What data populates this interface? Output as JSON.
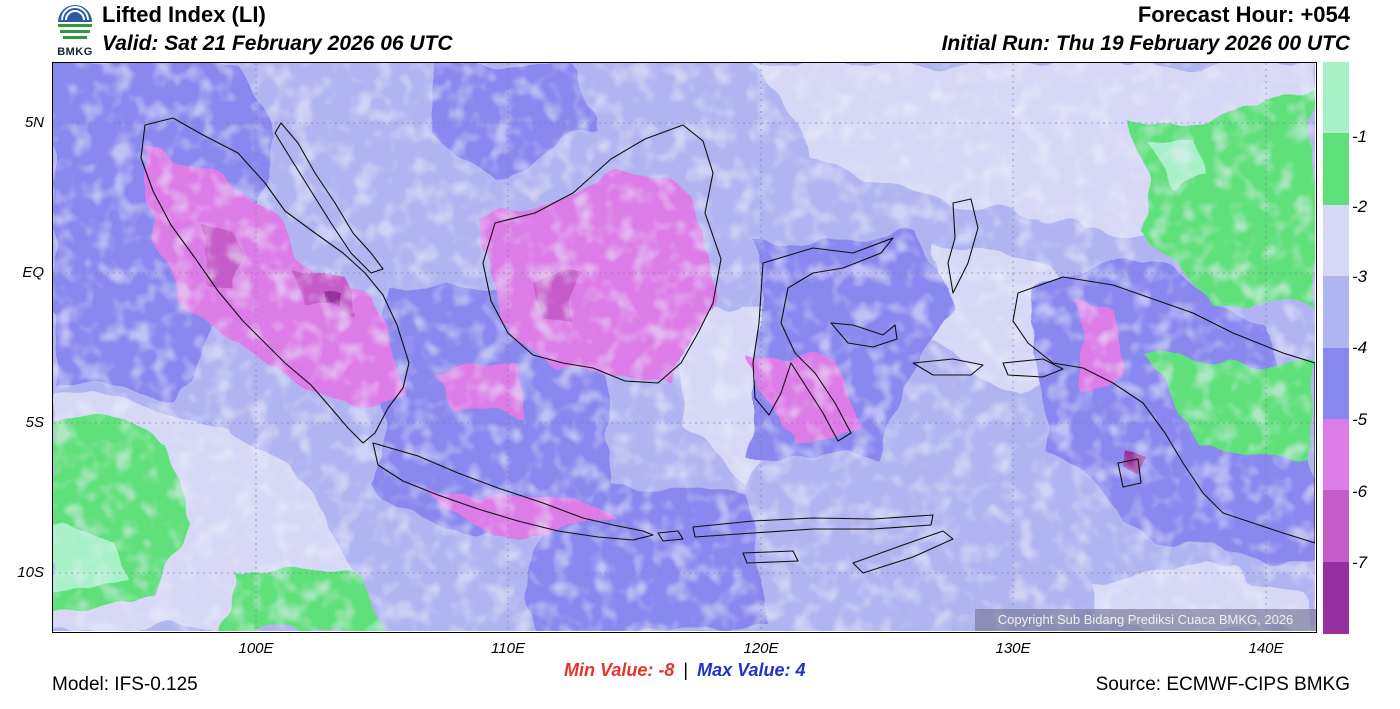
{
  "header": {
    "title": "Lifted Index (LI)",
    "valid": "Valid: Sat 21 February 2026 06 UTC",
    "forecast_hour": "Forecast Hour: +054",
    "initial_run": "Initial Run: Thu 19 February 2026 00 UTC",
    "logo_text": "BMKG"
  },
  "axes": {
    "lat_labels": [
      {
        "label": "5N",
        "lat": 5
      },
      {
        "label": "EQ",
        "lat": 0
      },
      {
        "label": "5S",
        "lat": -5
      },
      {
        "label": "10S",
        "lat": -10
      }
    ],
    "lon_labels": [
      {
        "label": "100E",
        "lon": 100
      },
      {
        "label": "110E",
        "lon": 110
      },
      {
        "label": "120E",
        "lon": 120
      },
      {
        "label": "130E",
        "lon": 130
      },
      {
        "label": "140E",
        "lon": 140
      }
    ],
    "lon_range": [
      92,
      142
    ],
    "lat_range": [
      -12,
      7
    ]
  },
  "colorbar": {
    "labels": [
      "-1",
      "-2",
      "-3",
      "-4",
      "-5",
      "-6",
      "-7"
    ],
    "colors": [
      "#a8f0c8",
      "#5ee07a",
      "#d6d8f6",
      "#b0b4f0",
      "#8888ee",
      "#dc7ce6",
      "#c65cc8",
      "#96309e"
    ]
  },
  "footer": {
    "min_label": "Min Value:",
    "min_value": "-8",
    "separator": "|",
    "max_label": "Max Value:",
    "max_value": "4",
    "model": "Model: IFS-0.125",
    "source": "Source: ECMWF-CIPS BMKG",
    "copyright": "Copyright Sub Bidang Prediksi Cuaca BMKG, 2026"
  }
}
